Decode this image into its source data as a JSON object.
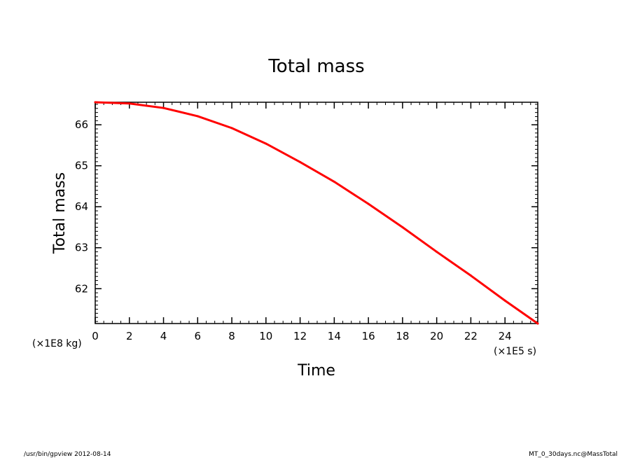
{
  "footer": {
    "left": "/usr/bin/gpview  2012-08-14",
    "right": "MT_0_30days.nc@MassTotal"
  },
  "chart_data": {
    "type": "line",
    "title": "Total mass",
    "xlabel": "Time",
    "ylabel": "Total mass",
    "x_unit": "(×1E5 s)",
    "y_unit": "(×1E8 kg)",
    "xlim": [
      0,
      25.92
    ],
    "ylim": [
      61.15,
      66.55
    ],
    "x_ticks": [
      0,
      2,
      4,
      6,
      8,
      10,
      12,
      14,
      16,
      18,
      20,
      22,
      24
    ],
    "y_ticks": [
      62,
      63,
      64,
      65,
      66
    ],
    "grid": false,
    "series": [
      {
        "color": "#ff0000",
        "x": [
          0,
          2,
          4,
          6,
          8,
          10,
          12,
          14,
          16,
          18,
          20,
          22,
          24,
          25.92
        ],
        "y": [
          66.55,
          66.52,
          66.41,
          66.21,
          65.92,
          65.54,
          65.09,
          64.61,
          64.07,
          63.5,
          62.9,
          62.32,
          61.71,
          61.15
        ]
      }
    ]
  }
}
